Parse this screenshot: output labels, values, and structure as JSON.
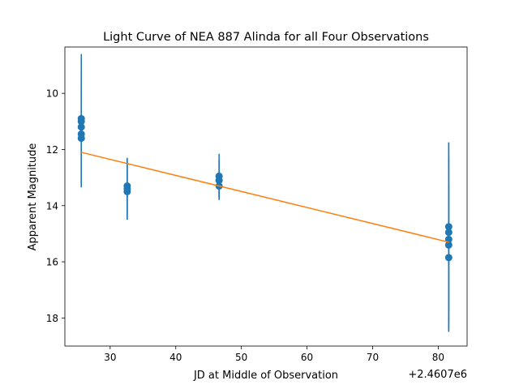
{
  "chart_data": {
    "type": "scatter",
    "title": "Light Curve of NEA 887 Alinda for all Four Observations",
    "xlabel": "JD at Middle of Observation",
    "ylabel": "Apparent Magnitude",
    "x_offset_label": "+2.4607e6",
    "x_ticks": [
      30,
      40,
      50,
      60,
      70,
      80
    ],
    "y_ticks": [
      10,
      12,
      14,
      16,
      18
    ],
    "xlim": [
      2460723.1,
      2460784.4
    ],
    "ylim": [
      19.0,
      8.35
    ],
    "y_inverted": true,
    "grid": false,
    "series": [
      {
        "color": "#1f77b4",
        "marker": "circle",
        "points": [
          {
            "x": 2460725.6,
            "y": 10.9,
            "err": 2.3
          },
          {
            "x": 2460725.6,
            "y": 11.0,
            "err": 2.2
          },
          {
            "x": 2460725.6,
            "y": 11.2,
            "err": 2.1
          },
          {
            "x": 2460725.6,
            "y": 11.45,
            "err": 1.9
          },
          {
            "x": 2460725.6,
            "y": 11.6,
            "err": 1.7
          },
          {
            "x": 2460732.6,
            "y": 13.3,
            "err": 1.0
          },
          {
            "x": 2460732.6,
            "y": 13.4,
            "err": 1.1
          },
          {
            "x": 2460732.6,
            "y": 13.5,
            "err": 1.0
          },
          {
            "x": 2460746.6,
            "y": 12.95,
            "err": 0.8
          },
          {
            "x": 2460746.6,
            "y": 13.1,
            "err": 0.7
          },
          {
            "x": 2460746.6,
            "y": 13.3,
            "err": 0.4
          },
          {
            "x": 2460781.6,
            "y": 14.75,
            "err": 3.0
          },
          {
            "x": 2460781.6,
            "y": 14.95,
            "err": 3.2
          },
          {
            "x": 2460781.6,
            "y": 15.2,
            "err": 3.2
          },
          {
            "x": 2460781.6,
            "y": 15.4,
            "err": 3.1
          },
          {
            "x": 2460781.6,
            "y": 15.85,
            "err": 2.6
          }
        ]
      },
      {
        "color": "#ff7f0e",
        "type": "line",
        "points": [
          {
            "x": 2460725.6,
            "y": 12.1
          },
          {
            "x": 2460781.6,
            "y": 15.3
          }
        ]
      }
    ]
  }
}
